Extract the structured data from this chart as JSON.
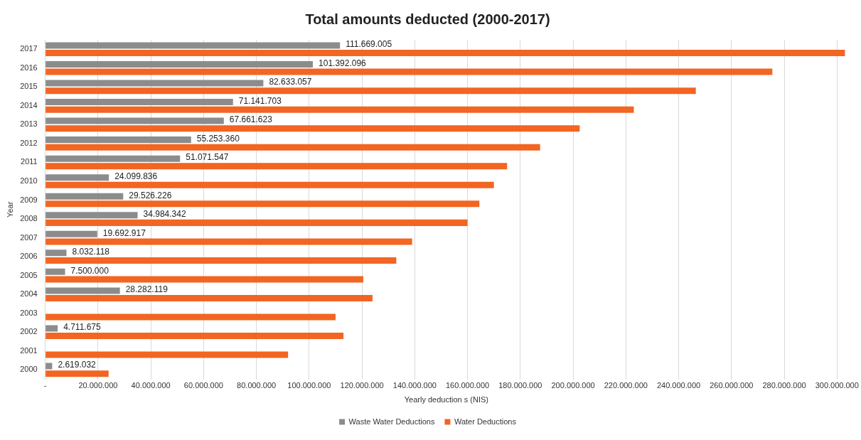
{
  "chart_data": {
    "type": "bar",
    "orientation": "horizontal",
    "title": "Total amounts deducted (2000-2017)",
    "xlabel": "Yearly deduction s (NIS)",
    "ylabel": "Year",
    "categories": [
      "2017",
      "2016",
      "2015",
      "2014",
      "2013",
      "2012",
      "2011",
      "2010",
      "2009",
      "2008",
      "2007",
      "2006",
      "2005",
      "2004",
      "2003",
      "2002",
      "2001",
      "2000"
    ],
    "series": [
      {
        "name": "Waste Water Deductions",
        "color": "#8c8c8c",
        "values": [
          111669005,
          101392096,
          82633057,
          71141703,
          67661623,
          55253360,
          51071547,
          24099836,
          29526226,
          34984342,
          19692917,
          8032118,
          7500000,
          28282119,
          null,
          4711675,
          null,
          2619032
        ],
        "value_labels": [
          "111.669.005",
          "101.392.096",
          "82.633.057",
          "71.141.703",
          "67.661.623",
          "55.253.360",
          "51.071.547",
          "24.099.836",
          "29.526.226",
          "34.984.342",
          "19.692.917",
          "8.032.118",
          "7.500.000",
          "28.282.119",
          null,
          "4.711.675",
          null,
          "2.619.032"
        ]
      },
      {
        "name": "Water Deductions",
        "color": "#f26522",
        "values": [
          303000000,
          275500000,
          246500000,
          223000000,
          202500000,
          187500000,
          175000000,
          170000000,
          164500000,
          160000000,
          139000000,
          133000000,
          120500000,
          124000000,
          110000000,
          113000000,
          92000000,
          24000000
        ]
      }
    ],
    "xlim": [
      0,
      304000000
    ],
    "xticks": [
      {
        "value": 0,
        "label": "-"
      },
      {
        "value": 20000000,
        "label": "20.000.000"
      },
      {
        "value": 40000000,
        "label": "40.000.000"
      },
      {
        "value": 60000000,
        "label": "60.000.000"
      },
      {
        "value": 80000000,
        "label": "80.000.000"
      },
      {
        "value": 100000000,
        "label": "100.000.000"
      },
      {
        "value": 120000000,
        "label": "120.000.000"
      },
      {
        "value": 140000000,
        "label": "140.000.000"
      },
      {
        "value": 160000000,
        "label": "160.000.000"
      },
      {
        "value": 180000000,
        "label": "180.000.000"
      },
      {
        "value": 200000000,
        "label": "200.000.000"
      },
      {
        "value": 220000000,
        "label": "220.000.000"
      },
      {
        "value": 240000000,
        "label": "240.000.000"
      },
      {
        "value": 260000000,
        "label": "260.000.000"
      },
      {
        "value": 280000000,
        "label": "280.000.000"
      },
      {
        "value": 300000000,
        "label": "300.000.000"
      }
    ],
    "grid": "x",
    "legend": "bottom"
  }
}
